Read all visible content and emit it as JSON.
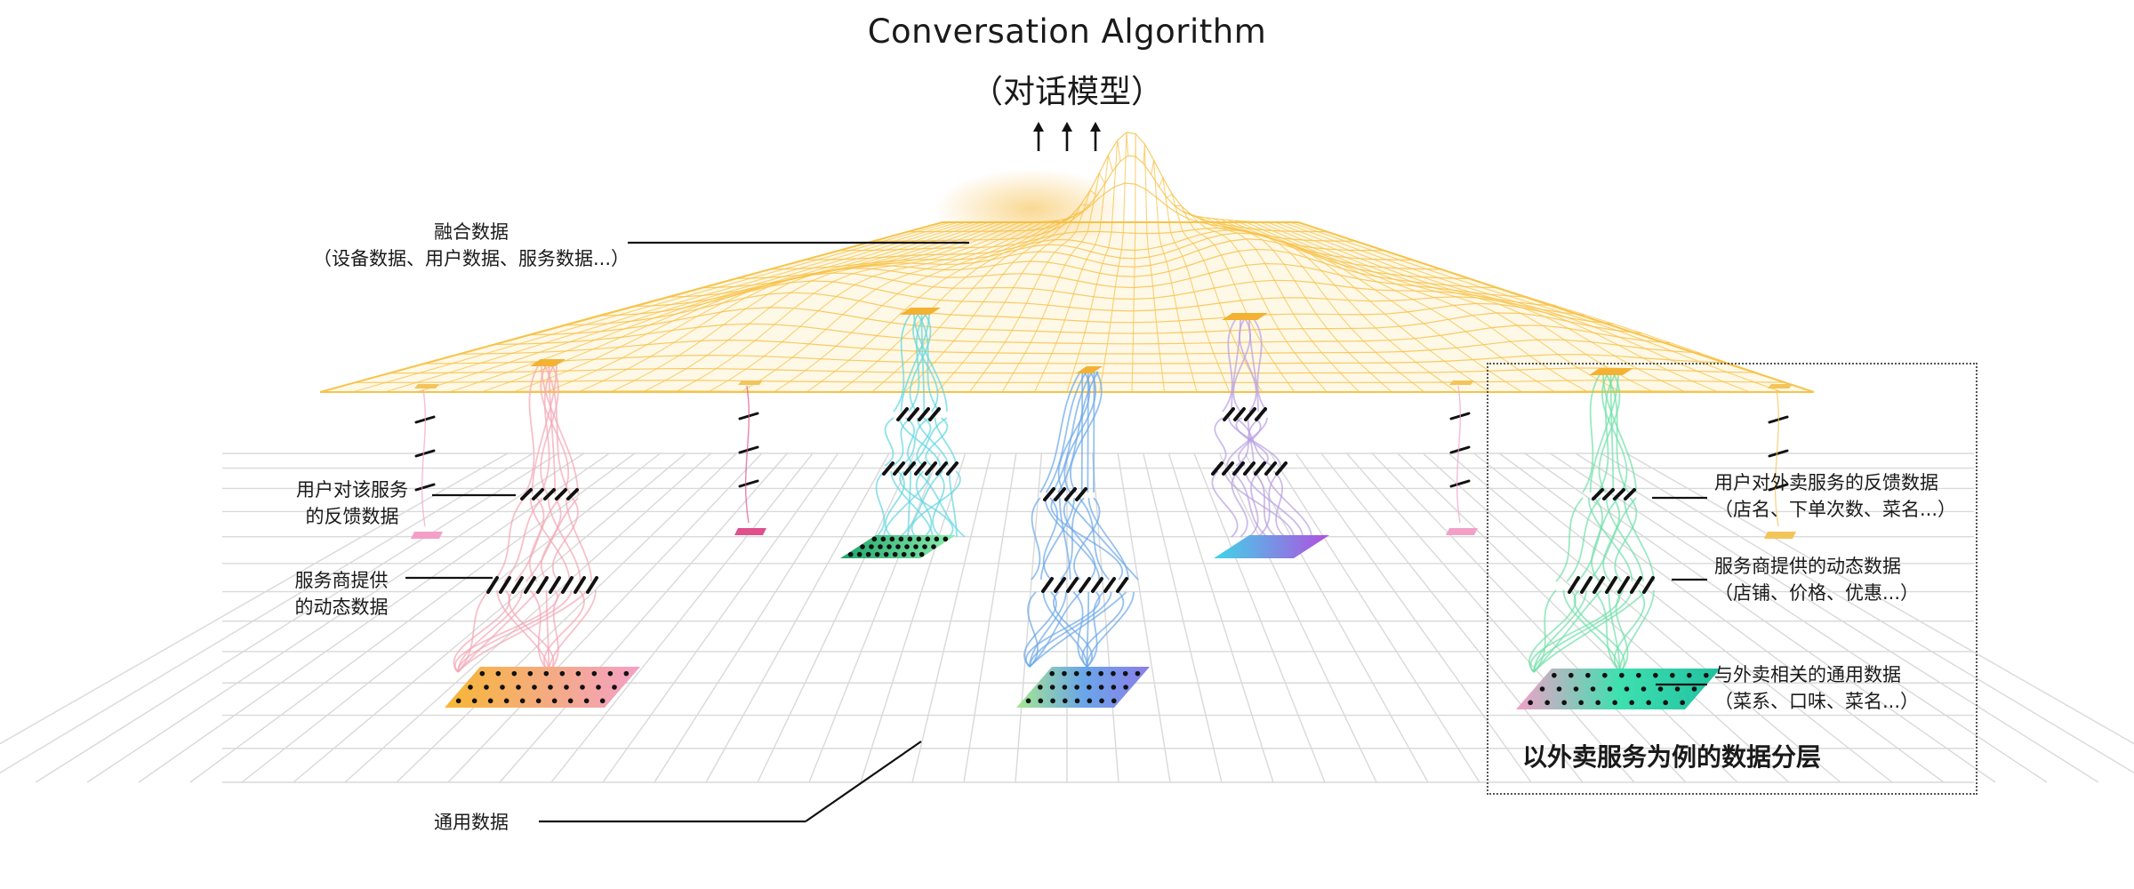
{
  "title": {
    "english": "Conversation Algorithm",
    "chinese": "（对话模型）"
  },
  "labels": {
    "fused_data": {
      "line1": "融合数据",
      "line2": "（设备数据、用户数据、服务数据...）"
    },
    "user_feedback": {
      "line1": "用户对该服务",
      "line2": "的反馈数据"
    },
    "provider_dynamic": {
      "line1": "服务商提供",
      "line2": "的动态数据"
    },
    "general_data": "通用数据"
  },
  "case_study": {
    "title": "以外卖服务为例的数据分层",
    "feedback": {
      "line1": "用户对外卖服务的反馈数据",
      "line2": "（店名、下单次数、菜名...）"
    },
    "dynamic": {
      "line1": "服务商提供的动态数据",
      "line2": "（店铺、价格、优惠...）"
    },
    "general": {
      "line1": "与外卖相关的通用数据",
      "line2": "（菜系、口味、菜名...）"
    }
  },
  "colors": {
    "fused_layer": "#f7c34a",
    "grid": "#d9d9d9",
    "stack_pink": "#f4a6b4",
    "stack_cyan": "#5fd6e0",
    "stack_blue": "#6aa6e8",
    "stack_purple": "#b8a0e0",
    "stack_green": "#6fe0a8",
    "stack_orange": "#f2a94a"
  },
  "icons": [
    "arrow-up-icon",
    "arrow-up-icon",
    "arrow-up-icon"
  ]
}
